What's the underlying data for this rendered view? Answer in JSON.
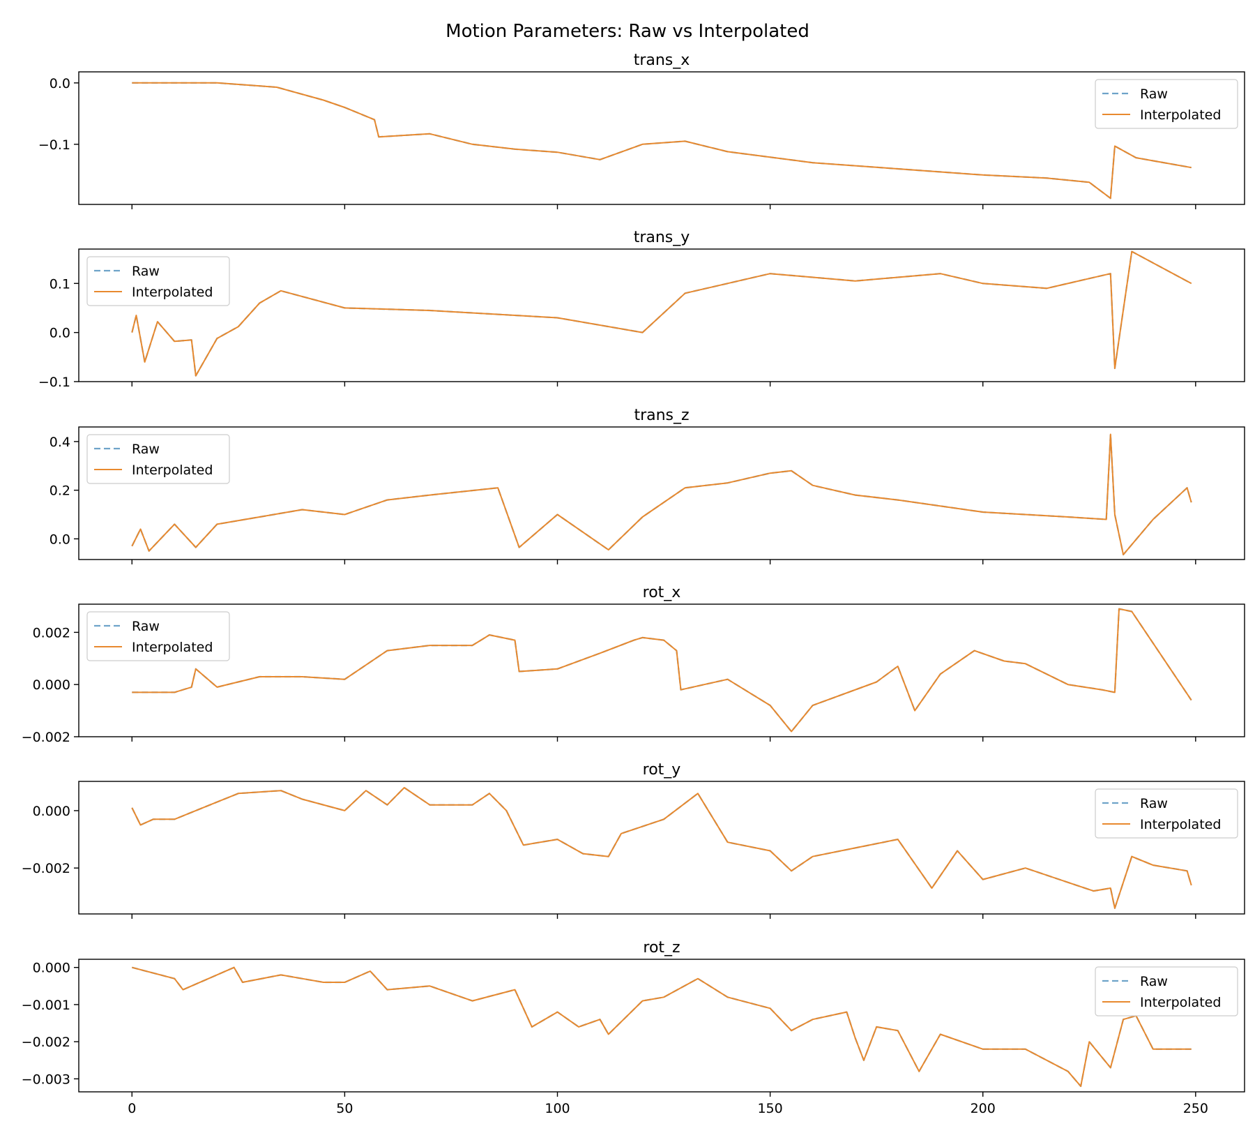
{
  "figure": {
    "title": "Motion Parameters: Raw vs Interpolated"
  },
  "colors": {
    "raw": "#6ea3c9",
    "interpolated": "#e8892e",
    "axes": "#000000",
    "background": "#ffffff"
  },
  "legend_labels": {
    "raw": "Raw",
    "interpolated": "Interpolated"
  },
  "chart_data": [
    {
      "type": "line",
      "title": "trans_x",
      "xlim": [
        -12.5,
        261.5
      ],
      "ylim": [
        -0.198,
        0.018
      ],
      "yticks": [
        -0.1,
        0.0
      ],
      "ytick_labels": [
        "−0.1",
        "0.0"
      ],
      "xticks": [
        0,
        50,
        100,
        150,
        200,
        250
      ],
      "xtick_labels": [
        "0",
        "50",
        "100",
        "150",
        "200",
        "250"
      ],
      "show_xtick_labels": false,
      "legend": "upper right",
      "grid": false,
      "x": [
        0,
        20,
        34,
        45,
        50,
        57,
        58,
        70,
        80,
        90,
        100,
        110,
        120,
        130,
        140,
        160,
        180,
        200,
        215,
        225,
        230,
        231,
        236,
        249
      ],
      "series": [
        {
          "name": "Raw",
          "values": [
            0.0,
            0.0,
            -0.007,
            -0.028,
            -0.04,
            -0.06,
            -0.088,
            -0.083,
            -0.1,
            -0.108,
            -0.113,
            -0.125,
            -0.1,
            -0.095,
            -0.112,
            -0.13,
            -0.14,
            -0.15,
            -0.155,
            -0.162,
            -0.188,
            -0.103,
            -0.122,
            -0.138
          ]
        },
        {
          "name": "Interpolated",
          "values": [
            0.0,
            0.0,
            -0.007,
            -0.028,
            -0.04,
            -0.06,
            -0.088,
            -0.083,
            -0.1,
            -0.108,
            -0.113,
            -0.125,
            -0.1,
            -0.095,
            -0.112,
            -0.13,
            -0.14,
            -0.15,
            -0.155,
            -0.162,
            -0.188,
            -0.103,
            -0.122,
            -0.138
          ]
        }
      ]
    },
    {
      "type": "line",
      "title": "trans_y",
      "xlim": [
        -12.5,
        261.5
      ],
      "ylim": [
        -0.1,
        0.17
      ],
      "yticks": [
        -0.1,
        0.0,
        0.1
      ],
      "ytick_labels": [
        "−0.1",
        "0.0",
        "0.1"
      ],
      "xticks": [
        0,
        50,
        100,
        150,
        200,
        250
      ],
      "xtick_labels": [
        "0",
        "50",
        "100",
        "150",
        "200",
        "250"
      ],
      "show_xtick_labels": false,
      "legend": "upper left",
      "grid": false,
      "x": [
        0,
        1,
        3,
        6,
        10,
        14,
        15,
        20,
        25,
        30,
        35,
        50,
        70,
        100,
        120,
        130,
        150,
        170,
        190,
        200,
        215,
        225,
        230,
        231,
        235,
        249
      ],
      "series": [
        {
          "name": "Raw",
          "values": [
            0.0,
            0.035,
            -0.06,
            0.022,
            -0.018,
            -0.015,
            -0.088,
            -0.012,
            0.012,
            0.06,
            0.085,
            0.05,
            0.045,
            0.03,
            0.0,
            0.08,
            0.12,
            0.105,
            0.12,
            0.1,
            0.09,
            0.11,
            0.12,
            -0.073,
            0.165,
            0.1
          ]
        },
        {
          "name": "Interpolated",
          "values": [
            0.0,
            0.035,
            -0.06,
            0.022,
            -0.018,
            -0.015,
            -0.088,
            -0.012,
            0.012,
            0.06,
            0.085,
            0.05,
            0.045,
            0.03,
            0.0,
            0.08,
            0.12,
            0.105,
            0.12,
            0.1,
            0.09,
            0.11,
            0.12,
            -0.073,
            0.165,
            0.1
          ]
        }
      ]
    },
    {
      "type": "line",
      "title": "trans_z",
      "xlim": [
        -12.5,
        261.5
      ],
      "ylim": [
        -0.085,
        0.46
      ],
      "yticks": [
        0.0,
        0.2,
        0.4
      ],
      "ytick_labels": [
        "0.0",
        "0.2",
        "0.4"
      ],
      "xticks": [
        0,
        50,
        100,
        150,
        200,
        250
      ],
      "xtick_labels": [
        "0",
        "50",
        "100",
        "150",
        "200",
        "250"
      ],
      "show_xtick_labels": false,
      "legend": "upper left",
      "grid": false,
      "x": [
        0,
        2,
        4,
        10,
        15,
        20,
        30,
        40,
        50,
        60,
        70,
        86,
        91,
        100,
        112,
        120,
        130,
        140,
        150,
        155,
        160,
        170,
        180,
        200,
        220,
        229,
        230,
        231,
        233,
        240,
        248,
        249
      ],
      "series": [
        {
          "name": "Raw",
          "values": [
            -0.03,
            0.04,
            -0.05,
            0.06,
            -0.035,
            0.06,
            0.09,
            0.12,
            0.1,
            0.16,
            0.18,
            0.21,
            -0.035,
            0.1,
            -0.045,
            0.09,
            0.21,
            0.23,
            0.27,
            0.28,
            0.22,
            0.18,
            0.16,
            0.11,
            0.09,
            0.08,
            0.43,
            0.1,
            -0.065,
            0.08,
            0.21,
            0.15
          ]
        },
        {
          "name": "Interpolated",
          "values": [
            -0.03,
            0.04,
            -0.05,
            0.06,
            -0.035,
            0.06,
            0.09,
            0.12,
            0.1,
            0.16,
            0.18,
            0.21,
            -0.035,
            0.1,
            -0.045,
            0.09,
            0.21,
            0.23,
            0.27,
            0.28,
            0.22,
            0.18,
            0.16,
            0.11,
            0.09,
            0.08,
            0.43,
            0.1,
            -0.065,
            0.08,
            0.21,
            0.15
          ]
        }
      ]
    },
    {
      "type": "line",
      "title": "rot_x",
      "xlim": [
        -12.5,
        261.5
      ],
      "ylim": [
        -0.002,
        0.00308
      ],
      "yticks": [
        -0.002,
        0.0,
        0.002
      ],
      "ytick_labels": [
        "−0.002",
        "0.000",
        "0.002"
      ],
      "xticks": [
        0,
        50,
        100,
        150,
        200,
        250
      ],
      "xtick_labels": [
        "0",
        "50",
        "100",
        "150",
        "200",
        "250"
      ],
      "show_xtick_labels": false,
      "legend": "upper left",
      "grid": false,
      "x": [
        0,
        10,
        14,
        15,
        20,
        30,
        40,
        50,
        60,
        70,
        80,
        84,
        90,
        91,
        100,
        110,
        118,
        120,
        125,
        128,
        129,
        140,
        150,
        155,
        160,
        175,
        180,
        184,
        190,
        198,
        205,
        210,
        220,
        228,
        231,
        232,
        235,
        249
      ],
      "series": [
        {
          "name": "Raw",
          "values": [
            -0.0003,
            -0.0003,
            -0.0001,
            0.0006,
            -0.0001,
            0.0003,
            0.0003,
            0.0002,
            0.0013,
            0.0015,
            0.0015,
            0.0019,
            0.0017,
            0.0005,
            0.0006,
            0.0012,
            0.0017,
            0.0018,
            0.0017,
            0.0013,
            -0.0002,
            0.0002,
            -0.0008,
            -0.0018,
            -0.0008,
            0.0001,
            0.0007,
            -0.001,
            0.0004,
            0.0013,
            0.0009,
            0.0008,
            0.0,
            -0.0002,
            -0.0003,
            0.0029,
            0.0028,
            -0.0006
          ]
        },
        {
          "name": "Interpolated",
          "values": [
            -0.0003,
            -0.0003,
            -0.0001,
            0.0006,
            -0.0001,
            0.0003,
            0.0003,
            0.0002,
            0.0013,
            0.0015,
            0.0015,
            0.0019,
            0.0017,
            0.0005,
            0.0006,
            0.0012,
            0.0017,
            0.0018,
            0.0017,
            0.0013,
            -0.0002,
            0.0002,
            -0.0008,
            -0.0018,
            -0.0008,
            0.0001,
            0.0007,
            -0.001,
            0.0004,
            0.0013,
            0.0009,
            0.0008,
            0.0,
            -0.0002,
            -0.0003,
            0.0029,
            0.0028,
            -0.0006
          ]
        }
      ]
    },
    {
      "type": "line",
      "title": "rot_y",
      "xlim": [
        -12.5,
        261.5
      ],
      "ylim": [
        -0.0036,
        0.00102
      ],
      "yticks": [
        -0.002,
        0.0
      ],
      "ytick_labels": [
        "−0.002",
        "0.000"
      ],
      "xticks": [
        0,
        50,
        100,
        150,
        200,
        250
      ],
      "xtick_labels": [
        "0",
        "50",
        "100",
        "150",
        "200",
        "250"
      ],
      "show_xtick_labels": false,
      "legend": "upper right",
      "grid": false,
      "x": [
        0,
        2,
        5,
        10,
        20,
        25,
        35,
        40,
        50,
        55,
        60,
        64,
        70,
        80,
        84,
        88,
        92,
        100,
        106,
        112,
        115,
        125,
        133,
        140,
        150,
        155,
        160,
        170,
        180,
        188,
        194,
        200,
        210,
        222,
        226,
        230,
        231,
        235,
        240,
        248,
        249
      ],
      "series": [
        {
          "name": "Raw",
          "values": [
            0.0001,
            -0.0005,
            -0.0003,
            -0.0003,
            0.0003,
            0.0006,
            0.0007,
            0.0004,
            0.0,
            0.0007,
            0.0002,
            0.0008,
            0.0002,
            0.0002,
            0.0006,
            0.0,
            -0.0012,
            -0.001,
            -0.0015,
            -0.0016,
            -0.0008,
            -0.0003,
            0.0006,
            -0.0011,
            -0.0014,
            -0.0021,
            -0.0016,
            -0.0013,
            -0.001,
            -0.0027,
            -0.0014,
            -0.0024,
            -0.002,
            -0.0026,
            -0.0028,
            -0.0027,
            -0.0034,
            -0.0016,
            -0.0019,
            -0.0021,
            -0.0026
          ]
        },
        {
          "name": "Interpolated",
          "values": [
            0.0001,
            -0.0005,
            -0.0003,
            -0.0003,
            0.0003,
            0.0006,
            0.0007,
            0.0004,
            0.0,
            0.0007,
            0.0002,
            0.0008,
            0.0002,
            0.0002,
            0.0006,
            0.0,
            -0.0012,
            -0.001,
            -0.0015,
            -0.0016,
            -0.0008,
            -0.0003,
            0.0006,
            -0.0011,
            -0.0014,
            -0.0021,
            -0.0016,
            -0.0013,
            -0.001,
            -0.0027,
            -0.0014,
            -0.0024,
            -0.002,
            -0.0026,
            -0.0028,
            -0.0027,
            -0.0034,
            -0.0016,
            -0.0019,
            -0.0021,
            -0.0026
          ]
        }
      ]
    },
    {
      "type": "line",
      "title": "rot_z",
      "xlim": [
        -12.5,
        261.5
      ],
      "ylim": [
        -0.00335,
        0.00022
      ],
      "yticks": [
        -0.003,
        -0.002,
        -0.001,
        0.0
      ],
      "ytick_labels": [
        "−0.003",
        "−0.002",
        "−0.001",
        "0.000"
      ],
      "xticks": [
        0,
        50,
        100,
        150,
        200,
        250
      ],
      "xtick_labels": [
        "0",
        "50",
        "100",
        "150",
        "200",
        "250"
      ],
      "show_xtick_labels": true,
      "legend": "upper right",
      "grid": false,
      "x": [
        0,
        10,
        12,
        24,
        26,
        35,
        40,
        45,
        50,
        56,
        60,
        70,
        80,
        90,
        94,
        100,
        105,
        110,
        112,
        120,
        125,
        133,
        140,
        150,
        155,
        160,
        168,
        170,
        172,
        175,
        180,
        185,
        190,
        200,
        210,
        220,
        223,
        225,
        230,
        233,
        236,
        240,
        248,
        249
      ],
      "series": [
        {
          "name": "Raw",
          "values": [
            0.0,
            -0.0003,
            -0.0006,
            0.0,
            -0.0004,
            -0.0002,
            -0.0003,
            -0.0004,
            -0.0004,
            -0.0001,
            -0.0006,
            -0.0005,
            -0.0009,
            -0.0006,
            -0.0016,
            -0.0012,
            -0.0016,
            -0.0014,
            -0.0018,
            -0.0009,
            -0.0008,
            -0.0003,
            -0.0008,
            -0.0011,
            -0.0017,
            -0.0014,
            -0.0012,
            -0.0019,
            -0.0025,
            -0.0016,
            -0.0017,
            -0.0028,
            -0.0018,
            -0.0022,
            -0.0022,
            -0.0028,
            -0.0032,
            -0.002,
            -0.0027,
            -0.0014,
            -0.0013,
            -0.0022,
            -0.0022,
            -0.0022
          ]
        },
        {
          "name": "Interpolated",
          "values": [
            0.0,
            -0.0003,
            -0.0006,
            0.0,
            -0.0004,
            -0.0002,
            -0.0003,
            -0.0004,
            -0.0004,
            -0.0001,
            -0.0006,
            -0.0005,
            -0.0009,
            -0.0006,
            -0.0016,
            -0.0012,
            -0.0016,
            -0.0014,
            -0.0018,
            -0.0009,
            -0.0008,
            -0.0003,
            -0.0008,
            -0.0011,
            -0.0017,
            -0.0014,
            -0.0012,
            -0.0019,
            -0.0025,
            -0.0016,
            -0.0017,
            -0.0028,
            -0.0018,
            -0.0022,
            -0.0022,
            -0.0028,
            -0.0032,
            -0.002,
            -0.0027,
            -0.0014,
            -0.0013,
            -0.0022,
            -0.0022,
            -0.0022
          ]
        }
      ]
    }
  ]
}
